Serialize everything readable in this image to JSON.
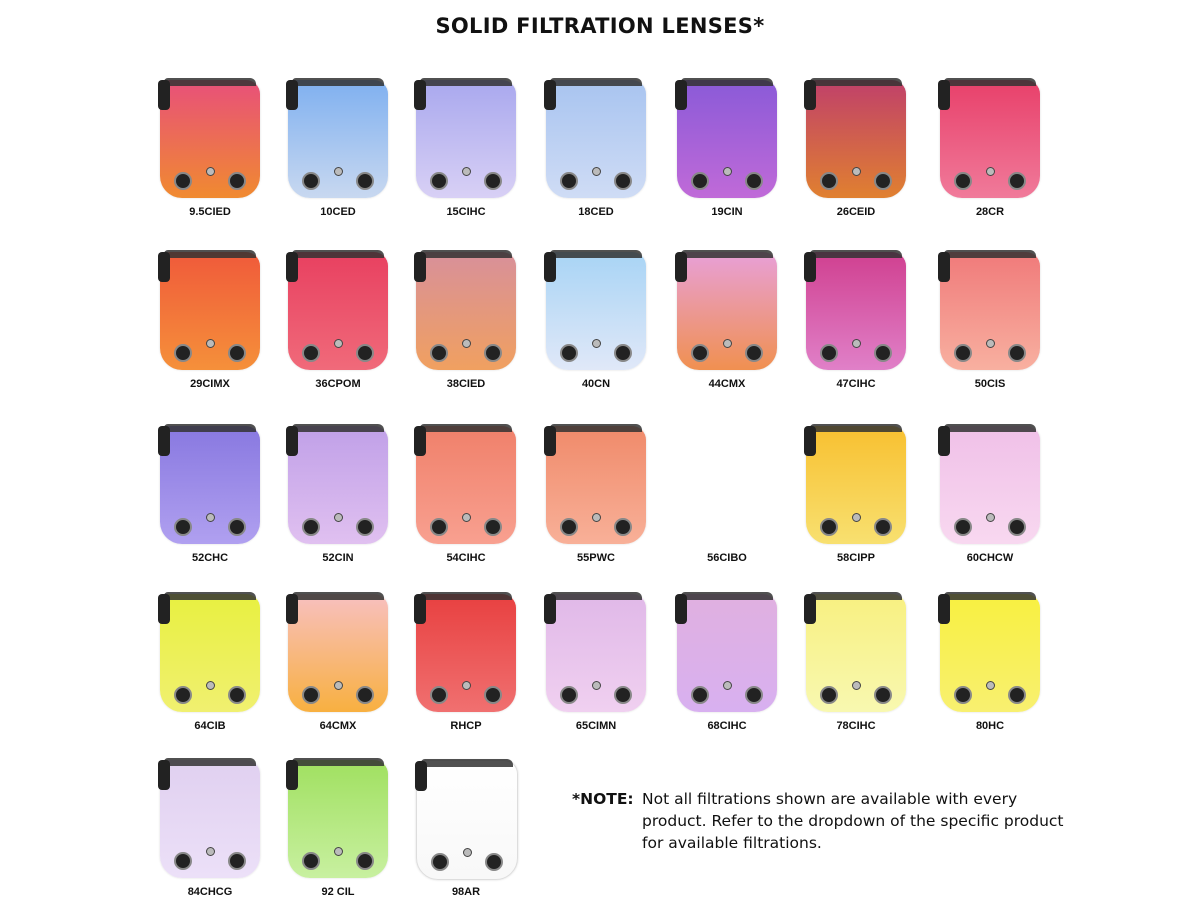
{
  "title": "SOLID FILTRATION LENSES*",
  "lenses": [
    {
      "label": "9.5CIED",
      "colors": [
        "#e8507a",
        "#f08a30"
      ],
      "image": true
    },
    {
      "label": "10CED",
      "colors": [
        "#7fb0f0",
        "#c8d8f0"
      ],
      "image": true
    },
    {
      "label": "15CIHC",
      "colors": [
        "#a9a8ee",
        "#d8d0f5"
      ],
      "image": true
    },
    {
      "label": "18CED",
      "colors": [
        "#a8c4f0",
        "#cfdcf5"
      ],
      "image": true
    },
    {
      "label": "19CIN",
      "colors": [
        "#8a5ad8",
        "#c06ad8"
      ],
      "image": true
    },
    {
      "label": "26CEID",
      "colors": [
        "#c0406a",
        "#e08030"
      ],
      "image": true
    },
    {
      "label": "28CR",
      "colors": [
        "#e8406a",
        "#f07a9a"
      ],
      "image": true
    },
    {
      "label": "29CIMX",
      "colors": [
        "#f05a3a",
        "#f5903a"
      ],
      "image": true
    },
    {
      "label": "36CPOM",
      "colors": [
        "#e84060",
        "#f06a7a"
      ],
      "image": true
    },
    {
      "label": "38CIED",
      "colors": [
        "#d8909a",
        "#f0a060"
      ],
      "image": true
    },
    {
      "label": "40CN",
      "colors": [
        "#a8d4f5",
        "#e0e8f8"
      ],
      "image": true
    },
    {
      "label": "44CMX",
      "colors": [
        "#e8a0d8",
        "#f09050"
      ],
      "image": true
    },
    {
      "label": "47CIHC",
      "colors": [
        "#d04090",
        "#e080c8"
      ],
      "image": true
    },
    {
      "label": "50CIS",
      "colors": [
        "#f07a7a",
        "#f8b0a0"
      ],
      "image": true
    },
    {
      "label": "52CHC",
      "colors": [
        "#8878e0",
        "#b0a0f0"
      ],
      "image": true
    },
    {
      "label": "52CIN",
      "colors": [
        "#c0a0e8",
        "#e0c0f0"
      ],
      "image": true
    },
    {
      "label": "54CIHC",
      "colors": [
        "#f0806a",
        "#f8a090"
      ],
      "image": true
    },
    {
      "label": "55PWC",
      "colors": [
        "#f08a6a",
        "#f8b098"
      ],
      "image": true
    },
    {
      "label": "56CIBO",
      "colors": [
        "#ffffff",
        "#ffffff"
      ],
      "image": false
    },
    {
      "label": "58CIPP",
      "colors": [
        "#f8c030",
        "#f8e070"
      ],
      "image": true
    },
    {
      "label": "60CHCW",
      "colors": [
        "#f0c0e8",
        "#f8d8f0"
      ],
      "image": true
    },
    {
      "label": "64CIB",
      "colors": [
        "#e8f040",
        "#f0f070"
      ],
      "image": true
    },
    {
      "label": "64CMX",
      "colors": [
        "#f8c0c0",
        "#f8b040"
      ],
      "image": true
    },
    {
      "label": "RHCP",
      "colors": [
        "#e84040",
        "#f07070"
      ],
      "image": true
    },
    {
      "label": "65CIMN",
      "colors": [
        "#e0b8e8",
        "#f0d0f0"
      ],
      "image": true
    },
    {
      "label": "68CIHC",
      "colors": [
        "#e0b0e0",
        "#d8b0f0"
      ],
      "image": true
    },
    {
      "label": "78CIHC",
      "colors": [
        "#f8f080",
        "#f8f8b0"
      ],
      "image": true
    },
    {
      "label": "80HC",
      "colors": [
        "#f8f040",
        "#f8f070"
      ],
      "image": true
    },
    {
      "label": "84CHCG",
      "colors": [
        "#e0d0f0",
        "#ece0f8"
      ],
      "image": true
    },
    {
      "label": "92 CIL",
      "colors": [
        "#a0e060",
        "#c8f0a0"
      ],
      "image": true
    },
    {
      "label": "98AR",
      "colors": [
        "#ffffff",
        "#f8f8f8"
      ],
      "image": true
    }
  ],
  "note": {
    "head": "*NOTE:",
    "body": "Not all filtrations shown are available with every product. Refer to the dropdown of the specific product for available filtrations."
  }
}
